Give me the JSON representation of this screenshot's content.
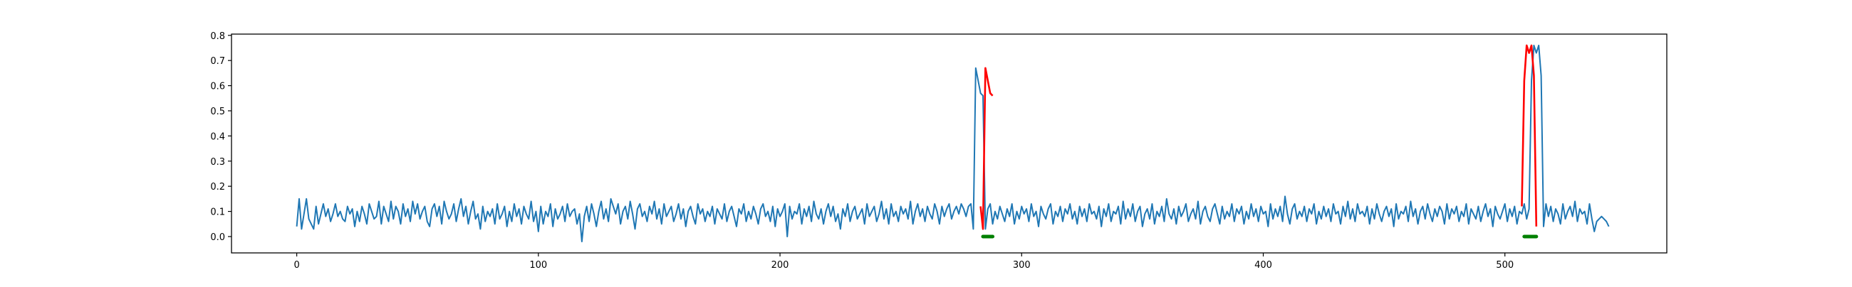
{
  "chart_data": {
    "type": "line",
    "title": "",
    "xlabel": "",
    "ylabel": "",
    "xlim": [
      -27,
      567
    ],
    "ylim": [
      -0.065,
      0.805
    ],
    "xticks": [
      0,
      100,
      200,
      300,
      400,
      500
    ],
    "yticks": [
      0.0,
      0.1,
      0.2,
      0.3,
      0.4,
      0.5,
      0.6,
      0.7,
      0.8
    ],
    "grid": false,
    "legend": "none",
    "colors": {
      "baseline": "#1f77b4",
      "anomaly": "#ff0000",
      "marker": "#008000"
    },
    "series": [
      {
        "role": "baseline",
        "values": [
          0.04,
          0.15,
          0.03,
          0.09,
          0.15,
          0.07,
          0.05,
          0.03,
          0.12,
          0.05,
          0.09,
          0.13,
          0.08,
          0.11,
          0.06,
          0.09,
          0.13,
          0.08,
          0.1,
          0.07,
          0.06,
          0.12,
          0.09,
          0.11,
          0.04,
          0.1,
          0.06,
          0.12,
          0.09,
          0.05,
          0.13,
          0.1,
          0.07,
          0.08,
          0.14,
          0.05,
          0.12,
          0.09,
          0.06,
          0.14,
          0.07,
          0.12,
          0.1,
          0.05,
          0.13,
          0.08,
          0.11,
          0.06,
          0.14,
          0.09,
          0.13,
          0.07,
          0.1,
          0.12,
          0.06,
          0.04,
          0.11,
          0.13,
          0.08,
          0.12,
          0.05,
          0.14,
          0.1,
          0.07,
          0.09,
          0.13,
          0.06,
          0.11,
          0.15,
          0.08,
          0.12,
          0.05,
          0.1,
          0.14,
          0.07,
          0.09,
          0.03,
          0.12,
          0.06,
          0.1,
          0.08,
          0.11,
          0.05,
          0.13,
          0.07,
          0.09,
          0.12,
          0.04,
          0.1,
          0.06,
          0.13,
          0.08,
          0.11,
          0.05,
          0.12,
          0.09,
          0.07,
          0.14,
          0.06,
          0.1,
          0.02,
          0.12,
          0.05,
          0.1,
          0.08,
          0.13,
          0.04,
          0.11,
          0.07,
          0.09,
          0.12,
          0.06,
          0.13,
          0.08,
          0.1,
          0.11,
          0.05,
          0.09,
          -0.02,
          0.08,
          0.12,
          0.06,
          0.13,
          0.09,
          0.04,
          0.1,
          0.14,
          0.07,
          0.11,
          0.06,
          0.15,
          0.12,
          0.09,
          0.13,
          0.05,
          0.1,
          0.12,
          0.07,
          0.14,
          0.09,
          0.03,
          0.11,
          0.13,
          0.08,
          0.1,
          0.06,
          0.12,
          0.09,
          0.14,
          0.07,
          0.11,
          0.05,
          0.13,
          0.08,
          0.1,
          0.12,
          0.06,
          0.09,
          0.13,
          0.07,
          0.11,
          0.04,
          0.1,
          0.12,
          0.08,
          0.05,
          0.13,
          0.09,
          0.11,
          0.06,
          0.1,
          0.08,
          0.12,
          0.05,
          0.11,
          0.09,
          0.07,
          0.13,
          0.06,
          0.1,
          0.12,
          0.08,
          0.04,
          0.11,
          0.09,
          0.13,
          0.06,
          0.1,
          0.07,
          0.12,
          0.09,
          0.05,
          0.11,
          0.13,
          0.08,
          0.1,
          0.06,
          0.12,
          0.04,
          0.11,
          0.08,
          0.1,
          0.13,
          0.0,
          0.12,
          0.07,
          0.1,
          0.09,
          0.13,
          0.05,
          0.11,
          0.08,
          0.12,
          0.06,
          0.14,
          0.09,
          0.07,
          0.11,
          0.05,
          0.1,
          0.13,
          0.08,
          0.12,
          0.06,
          0.09,
          0.03,
          0.11,
          0.08,
          0.13,
          0.06,
          0.1,
          0.12,
          0.07,
          0.09,
          0.11,
          0.05,
          0.13,
          0.08,
          0.1,
          0.12,
          0.06,
          0.09,
          0.14,
          0.07,
          0.11,
          0.05,
          0.13,
          0.08,
          0.1,
          0.06,
          0.12,
          0.09,
          0.11,
          0.07,
          0.14,
          0.05,
          0.1,
          0.13,
          0.08,
          0.11,
          0.06,
          0.12,
          0.09,
          0.07,
          0.13,
          0.1,
          0.05,
          0.12,
          0.08,
          0.11,
          0.13,
          0.07,
          0.1,
          0.12,
          0.09,
          0.13,
          0.11,
          0.08,
          0.12,
          0.13,
          0.03,
          0.67,
          0.62,
          0.57,
          0.56,
          0.03,
          0.11,
          0.13,
          0.05,
          0.1,
          0.07,
          0.12,
          0.09,
          0.06,
          0.11,
          0.08,
          0.13,
          0.05,
          0.1,
          0.07,
          0.12,
          0.09,
          0.11,
          0.06,
          0.13,
          0.08,
          0.1,
          0.04,
          0.12,
          0.09,
          0.07,
          0.11,
          0.13,
          0.05,
          0.1,
          0.08,
          0.12,
          0.06,
          0.11,
          0.09,
          0.13,
          0.07,
          0.1,
          0.05,
          0.12,
          0.08,
          0.11,
          0.06,
          0.13,
          0.09,
          0.1,
          0.07,
          0.12,
          0.04,
          0.11,
          0.08,
          0.13,
          0.06,
          0.1,
          0.09,
          0.12,
          0.05,
          0.14,
          0.07,
          0.11,
          0.08,
          0.13,
          0.06,
          0.1,
          0.12,
          0.04,
          0.09,
          0.11,
          0.07,
          0.13,
          0.05,
          0.1,
          0.08,
          0.12,
          0.06,
          0.15,
          0.09,
          0.07,
          0.11,
          0.05,
          0.12,
          0.08,
          0.1,
          0.13,
          0.06,
          0.09,
          0.11,
          0.07,
          0.14,
          0.05,
          0.1,
          0.12,
          0.08,
          0.06,
          0.11,
          0.13,
          0.09,
          0.05,
          0.12,
          0.07,
          0.1,
          0.08,
          0.13,
          0.06,
          0.11,
          0.09,
          0.12,
          0.05,
          0.1,
          0.07,
          0.13,
          0.08,
          0.11,
          0.06,
          0.12,
          0.09,
          0.1,
          0.04,
          0.13,
          0.07,
          0.11,
          0.08,
          0.12,
          0.06,
          0.16,
          0.09,
          0.05,
          0.11,
          0.13,
          0.07,
          0.1,
          0.08,
          0.12,
          0.06,
          0.11,
          0.09,
          0.13,
          0.05,
          0.1,
          0.07,
          0.12,
          0.08,
          0.11,
          0.06,
          0.13,
          0.09,
          0.1,
          0.05,
          0.12,
          0.08,
          0.14,
          0.07,
          0.11,
          0.06,
          0.13,
          0.09,
          0.1,
          0.08,
          0.12,
          0.05,
          0.11,
          0.07,
          0.13,
          0.09,
          0.06,
          0.1,
          0.12,
          0.08,
          0.11,
          0.04,
          0.13,
          0.07,
          0.1,
          0.09,
          0.12,
          0.06,
          0.14,
          0.08,
          0.11,
          0.05,
          0.1,
          0.12,
          0.07,
          0.13,
          0.09,
          0.06,
          0.11,
          0.08,
          0.12,
          0.1,
          0.05,
          0.13,
          0.07,
          0.11,
          0.09,
          0.12,
          0.06,
          0.1,
          0.08,
          0.13,
          0.05,
          0.11,
          0.09,
          0.07,
          0.12,
          0.06,
          0.1,
          0.13,
          0.08,
          0.11,
          0.04,
          0.12,
          0.09,
          0.07,
          0.1,
          0.13,
          0.06,
          0.11,
          0.08,
          0.12,
          0.05,
          0.1,
          0.09,
          0.13,
          0.07,
          0.11,
          0.62,
          0.76,
          0.73,
          0.76,
          0.64,
          0.04,
          0.13,
          0.08,
          0.12,
          0.06,
          0.11,
          0.09,
          0.05,
          0.13,
          0.07,
          0.1,
          0.12,
          0.08,
          0.14,
          0.06,
          0.11,
          0.09,
          0.1,
          0.05,
          0.13,
          0.07,
          0.02,
          0.06,
          0.07,
          0.08,
          0.07,
          0.06,
          0.04
        ]
      },
      {
        "role": "anomaly",
        "segments": [
          {
            "x": [
              283,
              284,
              285,
              286,
              287,
              288
            ],
            "y": [
              0.12,
              0.03,
              0.67,
              0.62,
              0.57,
              0.56
            ]
          },
          {
            "x": [
              507,
              508,
              509,
              510,
              511,
              512,
              513
            ],
            "y": [
              0.12,
              0.62,
              0.76,
              0.73,
              0.76,
              0.64,
              0.04
            ]
          }
        ]
      },
      {
        "role": "marker",
        "segments": [
          {
            "x": [
              284,
              288
            ],
            "y": [
              0.0,
              0.0
            ]
          },
          {
            "x": [
              508,
              513
            ],
            "y": [
              0.0,
              0.0
            ]
          }
        ]
      }
    ]
  }
}
